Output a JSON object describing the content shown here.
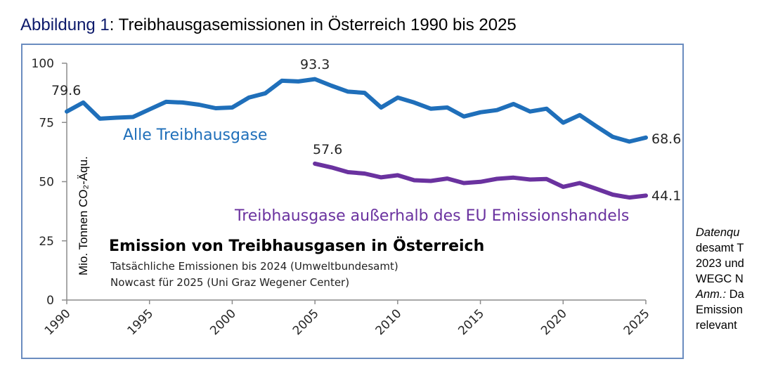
{
  "figure": {
    "label": "Abbildung 1",
    "title": ": Treibhausgasemissionen in Österreich 1990 bis 2025"
  },
  "side_note": {
    "lines": [
      {
        "italic": "Datenqu",
        "text": ""
      },
      {
        "italic": "",
        "text": "desamt T"
      },
      {
        "italic": "",
        "text": "2023 und"
      },
      {
        "italic": "",
        "text": "WEGC N"
      },
      {
        "italic": "Anm.:",
        "text": " Da"
      },
      {
        "italic": "",
        "text": "Emission"
      },
      {
        "italic": "",
        "text": "relevant"
      }
    ]
  },
  "colors": {
    "series_all": "#1f6fba",
    "series_non_ets": "#6a329f",
    "axis": "#8c8c8c",
    "frame": "#6a8cbf",
    "text": "#262626"
  },
  "chart_data": {
    "type": "line",
    "title": "Emission von Treibhausgasen in Österreich",
    "subtitle_lines": [
      "Tatsächliche Emissionen bis 2024 (Umweltbundesamt)",
      "Nowcast für 2025 (Uni Graz Wegener Center)"
    ],
    "xlabel": "",
    "ylabel": "Mio. Tonnen CO₂-Äqu.",
    "xlim": [
      1990,
      2025
    ],
    "ylim": [
      0,
      100
    ],
    "x_ticks": [
      1990,
      1995,
      2000,
      2005,
      2010,
      2015,
      2020,
      2025
    ],
    "y_ticks": [
      0,
      25,
      50,
      75,
      100
    ],
    "grid": false,
    "series": [
      {
        "name": "Alle Treibhausgase",
        "x": [
          1990,
          1991,
          1992,
          1993,
          1994,
          1995,
          1996,
          1997,
          1998,
          1999,
          2000,
          2001,
          2002,
          2003,
          2004,
          2005,
          2006,
          2007,
          2008,
          2009,
          2010,
          2011,
          2012,
          2013,
          2014,
          2015,
          2016,
          2017,
          2018,
          2019,
          2020,
          2021,
          2022,
          2023,
          2024,
          2025
        ],
        "values": [
          79.6,
          83.4,
          76.6,
          77.0,
          77.3,
          80.5,
          83.7,
          83.4,
          82.5,
          81.0,
          81.3,
          85.5,
          87.3,
          92.6,
          92.3,
          93.3,
          90.5,
          88.0,
          87.5,
          81.3,
          85.5,
          83.4,
          80.8,
          81.3,
          77.5,
          79.3,
          80.2,
          82.8,
          79.6,
          80.8,
          74.9,
          78.1,
          73.4,
          68.9,
          66.9,
          68.6
        ],
        "data_labels": [
          {
            "x": 1990,
            "text": "79.6"
          },
          {
            "x": 2005,
            "text": "93.3"
          },
          {
            "x": 2025,
            "text": "68.6"
          }
        ]
      },
      {
        "name": "Treibhausgase außerhalb des EU Emissionshandels",
        "x": [
          2005,
          2006,
          2007,
          2008,
          2009,
          2010,
          2011,
          2012,
          2013,
          2014,
          2015,
          2016,
          2017,
          2018,
          2019,
          2020,
          2021,
          2022,
          2023,
          2024,
          2025
        ],
        "values": [
          57.6,
          56.0,
          54.0,
          53.4,
          51.8,
          52.7,
          50.6,
          50.3,
          51.3,
          49.4,
          49.9,
          51.2,
          51.7,
          50.9,
          51.1,
          47.8,
          49.4,
          47.0,
          44.5,
          43.3,
          44.1
        ],
        "data_labels": [
          {
            "x": 2005,
            "text": "57.6"
          },
          {
            "x": 2025,
            "text": "44.1"
          }
        ]
      }
    ]
  }
}
